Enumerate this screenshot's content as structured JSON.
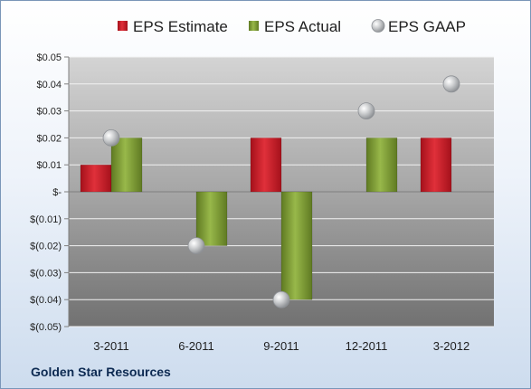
{
  "chart_data": {
    "type": "bar",
    "categories": [
      "3-2011",
      "6-2011",
      "9-2011",
      "12-2011",
      "3-2012"
    ],
    "series": [
      {
        "name": "EPS Estimate",
        "type": "bar",
        "color": "#cc1f2a",
        "values": [
          0.01,
          null,
          0.02,
          null,
          0.02
        ]
      },
      {
        "name": "EPS Actual",
        "type": "bar",
        "color": "#7f9c36",
        "values": [
          0.02,
          -0.02,
          -0.04,
          0.02,
          null
        ]
      },
      {
        "name": "EPS GAAP",
        "type": "scatter",
        "color": "#a9acb0",
        "values": [
          0.02,
          -0.02,
          -0.04,
          0.03,
          0.04
        ]
      }
    ],
    "ylim": [
      -0.05,
      0.05
    ],
    "yticks": [
      0.05,
      0.04,
      0.03,
      0.02,
      0.01,
      0,
      -0.01,
      -0.02,
      -0.03,
      -0.04,
      -0.05
    ],
    "ytick_labels": [
      "$0.05",
      "$0.04",
      "$0.03",
      "$0.02",
      "$0.01",
      "$-",
      "$(0.01)",
      "$(0.02)",
      "$(0.03)",
      "$(0.04)",
      "$(0.05)"
    ],
    "legend_position": "top",
    "grid": true
  },
  "company": "Golden Star Resources"
}
